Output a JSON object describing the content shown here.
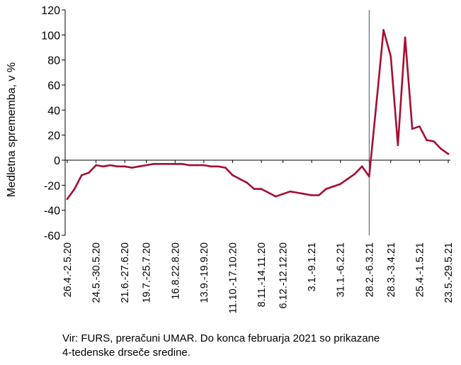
{
  "chart_data": {
    "type": "line",
    "ylabel": "Medletna sprememba, v %",
    "ylim": [
      -60,
      120
    ],
    "yticks": [
      120,
      100,
      80,
      60,
      40,
      20,
      0,
      -20,
      -40,
      -60
    ],
    "xtick_labels": [
      "26.4.-2.5.20",
      "24.5.-30.5.20",
      "21.6.-27.6.20",
      "19.7.-25.7.20",
      "16.8.22.8.20",
      "13.9.-19.9.20",
      "11.10.-17.10.20",
      "8.11.-14.11.20",
      "6.12.-12.12.20",
      "3.1.-9.1.21",
      "31.1.-6.2.21",
      "28.2.-6.3.21",
      "28.3.-3.4.21",
      "25.4.-1.5.21",
      "23.5.-29.5.21"
    ],
    "grid": false,
    "series": [
      {
        "color": "#a50d32",
        "values": [
          -31,
          -23,
          -12,
          -10,
          -4,
          -5,
          -4,
          -5,
          -5,
          -6,
          -5,
          -4,
          -3,
          -3,
          -3,
          -3,
          -3,
          -4,
          -4,
          -4,
          -5,
          -5,
          -6,
          -12,
          -15,
          -18,
          -23,
          -23,
          -26,
          -29,
          -27,
          -25,
          -26,
          -27,
          -28,
          -28,
          -23,
          -21,
          -19,
          -15,
          -11,
          -5,
          -13,
          45,
          104,
          83,
          12,
          98,
          25,
          27,
          16,
          15,
          9,
          5
        ]
      }
    ],
    "vline_label": "28.2.-6.3.21",
    "vline_color": "#4a4a7a"
  },
  "footnote": {
    "line1": "Vir: FURS, preračuni UMAR. Do konca februarja 2021 so prikazane",
    "line2": "4-tedenske drseče sredine."
  }
}
